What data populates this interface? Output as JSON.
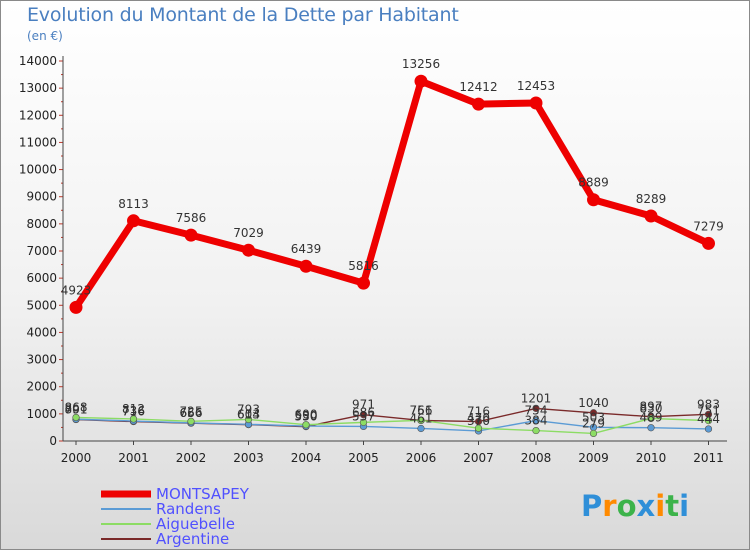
{
  "chart_data": {
    "type": "line",
    "title": "Evolution du Montant de la Dette par Habitant",
    "subtitle": "(en €)",
    "xlabel": "",
    "ylabel": "",
    "ylim": [
      0,
      14000
    ],
    "yticks": [
      0,
      1000,
      2000,
      3000,
      4000,
      5000,
      6000,
      7000,
      8000,
      9000,
      10000,
      11000,
      12000,
      13000,
      14000
    ],
    "x": [
      "2000",
      "2001",
      "2002",
      "2003",
      "2004",
      "2005",
      "2006",
      "2007",
      "2008",
      "2009",
      "2010",
      "2011"
    ],
    "series": [
      {
        "name": "Argentine",
        "color": "#7a2a2a",
        "values": [
          791,
          716,
          656,
          603,
          530,
          971,
          756,
          716,
          1201,
          1040,
          897,
          983
        ]
      },
      {
        "name": "Randens",
        "color": "#5b9bd5",
        "values": [
          801,
          736,
          666,
          614,
          550,
          537,
          461,
          370,
          754,
          503,
          489,
          444
        ]
      },
      {
        "name": "Aiguebelle",
        "color": "#8cdc64",
        "values": [
          868,
          812,
          725,
          793,
          600,
          686,
          761,
          470,
          384,
          279,
          830,
          751
        ]
      },
      {
        "name": "MONTSAPEY",
        "color": "#ee0000",
        "values": [
          4923,
          8113,
          7586,
          7029,
          6439,
          5816,
          13256,
          12412,
          12453,
          8889,
          8289,
          7279
        ]
      }
    ]
  },
  "legend": {
    "items": [
      {
        "name": "MONTSAPEY",
        "color": "#ee0000",
        "text_color": "#5050ff"
      },
      {
        "name": "Randens",
        "color": "#5b9bd5",
        "text_color": "#5050ff"
      },
      {
        "name": "Aiguebelle",
        "color": "#8cdc64",
        "text_color": "#5050ff"
      },
      {
        "name": "Argentine",
        "color": "#7a2a2a",
        "text_color": "#5050ff"
      }
    ]
  },
  "brand": {
    "letters": [
      "P",
      "r",
      "o",
      "x",
      "i",
      "t",
      "i"
    ],
    "colors": [
      "#2f8fd8",
      "#ff8a00",
      "#3cb34a",
      "#2f8fd8",
      "#ff8a00",
      "#3cb34a",
      "#2f8fd8"
    ]
  }
}
